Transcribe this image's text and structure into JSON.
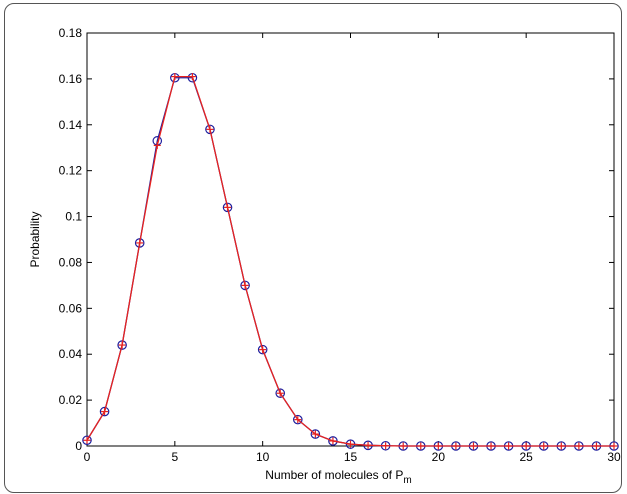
{
  "chart_data": {
    "type": "line",
    "xlabel": "Number of molecules of P",
    "xlabel_subscript": "m",
    "ylabel": "Probability",
    "xlim": [
      0,
      30
    ],
    "ylim": [
      0,
      0.18
    ],
    "xticks": [
      0,
      5,
      10,
      15,
      20,
      25,
      30
    ],
    "yticks": [
      0,
      0.02,
      0.04,
      0.06,
      0.08,
      0.1,
      0.12,
      0.14,
      0.16,
      0.18
    ],
    "ytick_labels": [
      "0",
      "0.02",
      "0.04",
      "0.06",
      "0.08",
      "0.1",
      "0.12",
      "0.14",
      "0.16",
      "0.18"
    ],
    "grid": false,
    "box": true,
    "x": [
      0,
      1,
      2,
      3,
      4,
      5,
      6,
      7,
      8,
      9,
      10,
      11,
      12,
      13,
      14,
      15,
      16,
      17,
      18,
      19,
      20,
      21,
      22,
      23,
      24,
      25,
      26,
      27,
      28,
      29,
      30
    ],
    "series": [
      {
        "marker": "circle",
        "color": "#1f1f9e",
        "values": [
          0.0025,
          0.015,
          0.044,
          0.0885,
          0.133,
          0.1605,
          0.1605,
          0.138,
          0.104,
          0.07,
          0.042,
          0.023,
          0.0115,
          0.0052,
          0.0022,
          0.0008,
          0.0003,
          0.0001,
          0,
          0,
          0,
          0,
          0,
          0,
          0,
          0,
          0,
          0,
          0,
          0,
          0
        ]
      },
      {
        "marker": "plus",
        "color": "#e8231f",
        "values": [
          0.0025,
          0.015,
          0.044,
          0.0885,
          0.131,
          0.161,
          0.161,
          0.138,
          0.104,
          0.07,
          0.042,
          0.023,
          0.0115,
          0.0052,
          0.0022,
          0.0008,
          0.0003,
          0.0001,
          0,
          0,
          0,
          0,
          0,
          0,
          0,
          0,
          0,
          0,
          0,
          0,
          0
        ]
      }
    ]
  }
}
